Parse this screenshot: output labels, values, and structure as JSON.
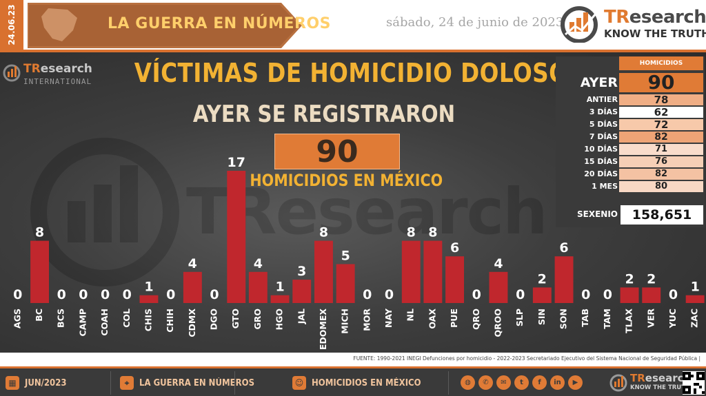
{
  "header": {
    "date_code": "24.06.23",
    "banner_title": "LA GUERRA EN NÚMEROS",
    "date_text": "sábado, 24 de junio de 2023",
    "logo_brand_a": "TR",
    "logo_brand_b": "esearch",
    "logo_tagline": "KNOW THE TRUTH"
  },
  "intl_logo": {
    "brand_a": "TR",
    "brand_b": "esearch",
    "tag": "INTERNATIONAL"
  },
  "watermark_text": "TResearch",
  "summary": {
    "subtitle": "AYER SE REGISTRARON",
    "total": "90",
    "caption": "HOMICIDIOS EN MÉXICO"
  },
  "stats": {
    "header": "HOMICIDIOS",
    "rows": [
      {
        "label": "AYER",
        "value": "90",
        "bg": "#e07b36"
      },
      {
        "label": "ANTIER",
        "value": "78",
        "bg": "#f0ae85"
      },
      {
        "label": "3 DÍAS",
        "value": "62",
        "bg": "#ffffff"
      },
      {
        "label": "5 DÍAS",
        "value": "72",
        "bg": "#f7c9aa"
      },
      {
        "label": "7 DÍAS",
        "value": "82",
        "bg": "#eea476"
      },
      {
        "label": "10 DÍAS",
        "value": "71",
        "bg": "#f9dccb"
      },
      {
        "label": "15 DÍAS",
        "value": "76",
        "bg": "#f6cfb6"
      },
      {
        "label": "20 DÍAS",
        "value": "82",
        "bg": "#f4c2a3"
      },
      {
        "label": "1 MES",
        "value": "80",
        "bg": "#f8d8c4"
      }
    ],
    "sexenio_label": "SEXENIO",
    "sexenio_value": "158,651"
  },
  "chart_data": {
    "type": "bar",
    "title": "VÍCTIMAS DE HOMICIDIO DOLOSO",
    "categories": [
      "AGS",
      "BC",
      "BCS",
      "CAMP",
      "COAH",
      "COL",
      "CHIS",
      "CHIH",
      "CDMX",
      "DGO",
      "GTO",
      "GRO",
      "HGO",
      "JAL",
      "EDOMEX",
      "MICH",
      "MOR",
      "NAY",
      "NL",
      "OAX",
      "PUE",
      "QRO",
      "QROO",
      "SLP",
      "SIN",
      "SON",
      "TAB",
      "TAM",
      "TLAX",
      "VER",
      "YUC",
      "ZAC"
    ],
    "values": [
      0,
      8,
      0,
      0,
      0,
      0,
      1,
      0,
      4,
      0,
      17,
      4,
      1,
      3,
      8,
      5,
      0,
      0,
      8,
      8,
      6,
      0,
      4,
      0,
      2,
      6,
      0,
      0,
      2,
      2,
      0,
      1
    ],
    "ylim": [
      0,
      17
    ],
    "bar_color": "#c0272d",
    "grid": false
  },
  "source": "FUENTE: 1990-2021 INEGI Defunciones por homicidio - 2022-2023 Secretariado Ejecutivo del Sistema Nacional de Seguridad Pública |",
  "footer": {
    "items": [
      {
        "label": "JUN/2023",
        "icon": "calendar-icon"
      },
      {
        "label": "LA GUERRA EN NÚMEROS",
        "icon": "map-pin-icon"
      },
      {
        "label": "HOMICIDIOS EN MÉXICO",
        "icon": "chat-bubble-icon"
      }
    ],
    "social": [
      {
        "icon": "globe-icon",
        "glyph": "◍"
      },
      {
        "icon": "whatsapp-icon",
        "glyph": "✆"
      },
      {
        "icon": "email-icon",
        "glyph": "✉"
      },
      {
        "icon": "twitter-icon",
        "glyph": "t"
      },
      {
        "icon": "facebook-icon",
        "glyph": "f"
      },
      {
        "icon": "linkedin-icon",
        "glyph": "in"
      },
      {
        "icon": "youtube-icon",
        "glyph": "▶"
      }
    ],
    "logo_brand_a": "TR",
    "logo_brand_b": "esearch",
    "logo_tagline": "KNOW THE TRUTH"
  }
}
